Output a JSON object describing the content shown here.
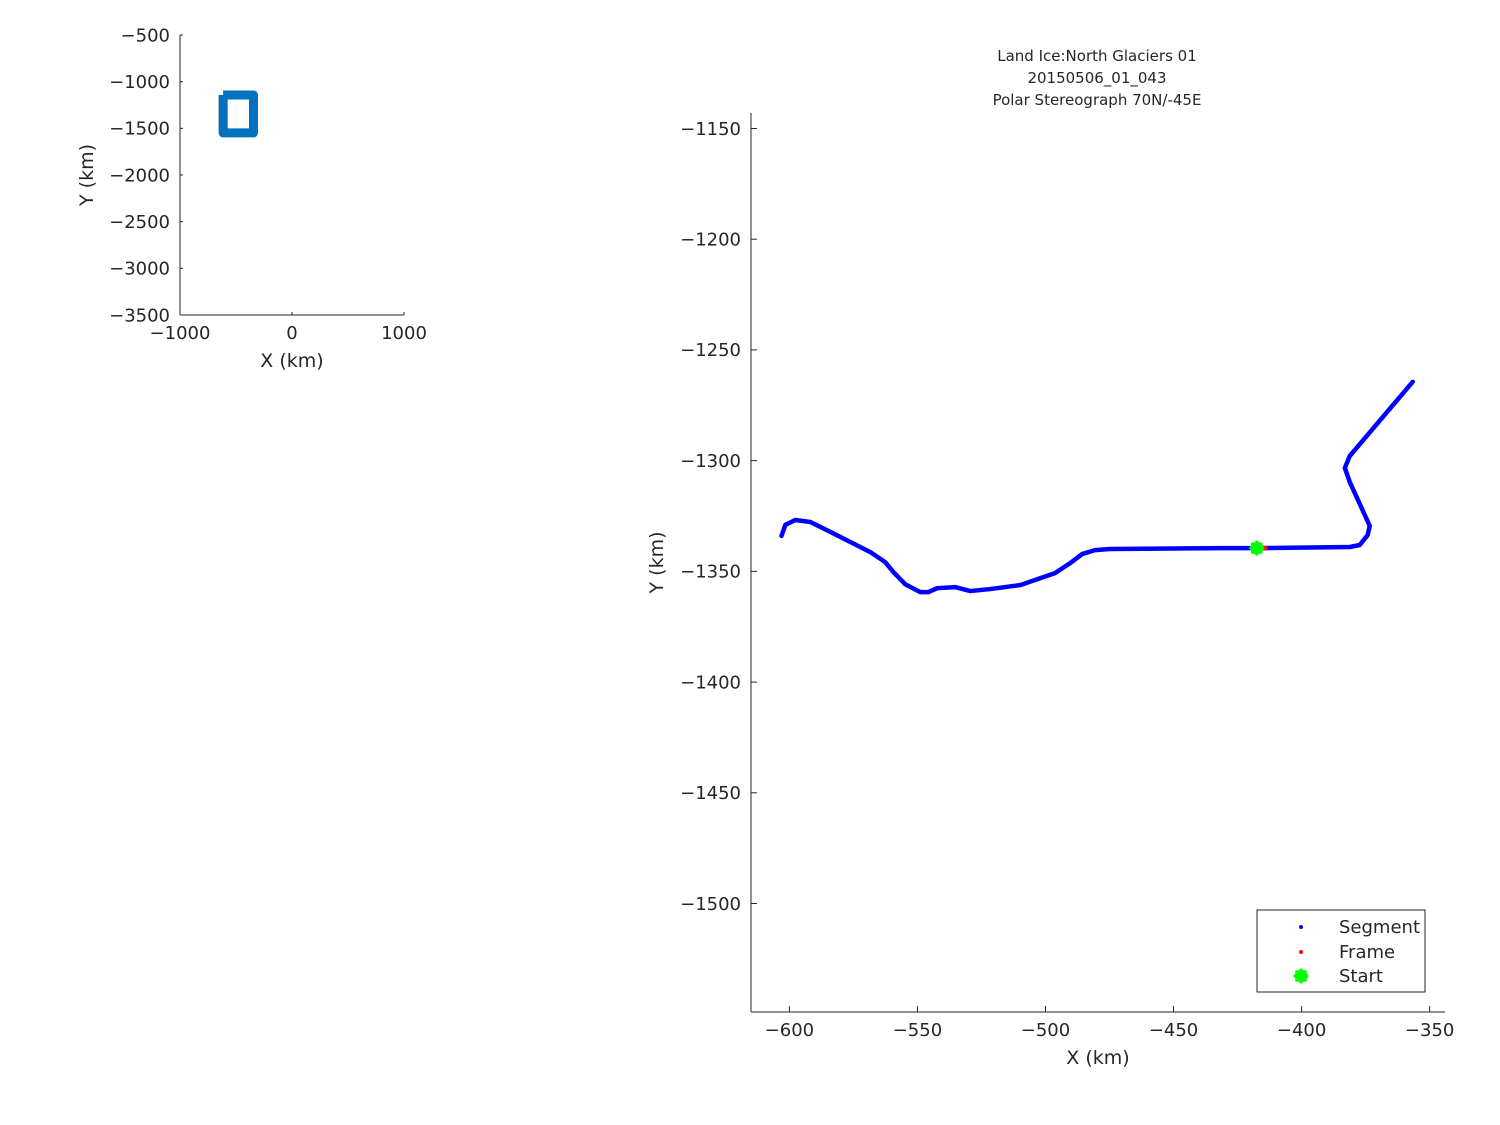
{
  "chart_data": [
    {
      "type": "line",
      "panel": "overview",
      "xlabel": "X (km)",
      "ylabel": "Y (km)",
      "xlim": [
        -1000,
        1000
      ],
      "ylim": [
        -3500,
        -500
      ],
      "xticks": [
        -1000,
        0,
        1000
      ],
      "yticks": [
        -500,
        -1000,
        -1500,
        -2000,
        -2500,
        -3000,
        -3500
      ],
      "xtick_labels": [
        "−1000",
        "0",
        "1000"
      ],
      "ytick_labels": [
        "−500",
        "−1000",
        "−1500",
        "−2000",
        "−2500",
        "−3000",
        "−3500"
      ],
      "series": [
        {
          "color": "#0072bd",
          "x": [
            -615,
            -344,
            -344,
            -615,
            -615
          ],
          "y": [
            -1143,
            -1143,
            -1549,
            -1549,
            -1143
          ]
        }
      ]
    },
    {
      "type": "scatter",
      "panel": "main",
      "title": [
        "Land Ice:North Glaciers 01",
        "20150506_01_043",
        "Polar Stereograph 70N/-45E"
      ],
      "xlabel": "X (km)",
      "ylabel": "Y (km)",
      "xlim": [
        -615,
        -344
      ],
      "ylim": [
        -1549,
        -1143
      ],
      "xticks": [
        -600,
        -550,
        -500,
        -450,
        -400,
        -350
      ],
      "yticks": [
        -1150,
        -1200,
        -1250,
        -1300,
        -1350,
        -1400,
        -1450,
        -1500
      ],
      "xtick_labels": [
        "−600",
        "−550",
        "−500",
        "−450",
        "−400",
        "−350"
      ],
      "ytick_labels": [
        "−1150",
        "−1200",
        "−1250",
        "−1300",
        "−1350",
        "−1400",
        "−1450",
        "−1500"
      ],
      "grid": false,
      "legend_position": "bottom-right",
      "series": [
        {
          "name": "Segment",
          "color": "#0000ff",
          "x": [
            -603.1,
            -601.6,
            -597.7,
            -591.8,
            -584,
            -577,
            -568.4,
            -562.6,
            -559.4,
            -554.8,
            -548.9,
            -545.8,
            -542.3,
            -535.3,
            -529.4,
            -521.6,
            -509.9,
            -496.3,
            -490.4,
            -485.7,
            -480.7,
            -474.8,
            -431.9,
            -417.5,
            -381.2,
            -377.3,
            -374.2,
            -373.4,
            -375.3,
            -381.2,
            -383.1,
            -381.2,
            -356.6
          ],
          "y": [
            -1334,
            -1329,
            -1326.8,
            -1327.7,
            -1332.2,
            -1336.3,
            -1341.3,
            -1345.8,
            -1350.3,
            -1355.8,
            -1359.4,
            -1359.4,
            -1357.6,
            -1357.1,
            -1358.9,
            -1358,
            -1356.2,
            -1350.8,
            -1346.3,
            -1342.2,
            -1340.4,
            -1339.9,
            -1339.5,
            -1339.5,
            -1339,
            -1338.1,
            -1333.6,
            -1329.5,
            -1324.6,
            -1309.6,
            -1303.3,
            -1297.9,
            -1264.4
          ]
        },
        {
          "name": "Frame",
          "color": "#ff0000",
          "x": [
            -417.5,
            -413.2
          ],
          "y": [
            -1339.5,
            -1339.5
          ]
        },
        {
          "name": "Start",
          "color": "#00ff00",
          "x": [
            -417.5
          ],
          "y": [
            -1339.5
          ]
        }
      ]
    }
  ]
}
